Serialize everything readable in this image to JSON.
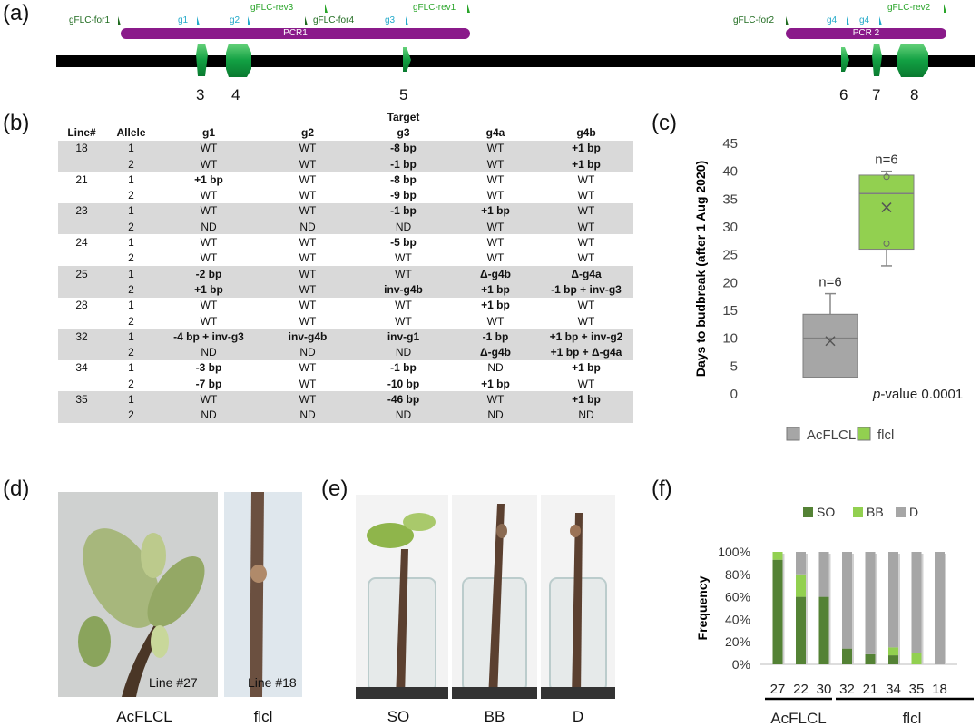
{
  "panels": {
    "a": "(a)",
    "b": "(b)",
    "c": "(c)",
    "d": "(d)",
    "e": "(e)",
    "f": "(f)"
  },
  "diagram": {
    "primers": [
      "gFLC-for1",
      "g1",
      "g2",
      "gFLC-rev3",
      "gFLC-for4",
      "g3",
      "gFLC-rev1",
      "gFLC-for2",
      "g4",
      "g4",
      "gFLC-rev2"
    ],
    "pcr": [
      "PCR1",
      "PCR 2"
    ],
    "exons": [
      "3",
      "4",
      "5",
      "6",
      "7",
      "8"
    ],
    "colors": {
      "pcr": "#8a1a8a",
      "exon": "#1aa34a",
      "chromosome": "#000000"
    }
  },
  "table": {
    "target_label": "Target",
    "headers": [
      "Line#",
      "Allele",
      "g1",
      "g2",
      "g3",
      "g4a",
      "g4b"
    ],
    "rows": [
      [
        "18",
        "1",
        "WT",
        "WT",
        "-8 bp",
        "WT",
        "+1 bp"
      ],
      [
        "",
        "2",
        "WT",
        "WT",
        "-1 bp",
        "WT",
        "+1 bp"
      ],
      [
        "21",
        "1",
        "+1 bp",
        "WT",
        "-8 bp",
        "WT",
        "WT"
      ],
      [
        "",
        "2",
        "WT",
        "WT",
        "-9 bp",
        "WT",
        "WT"
      ],
      [
        "23",
        "1",
        "WT",
        "WT",
        "-1 bp",
        "+1 bp",
        "WT"
      ],
      [
        "",
        "2",
        "ND",
        "ND",
        "ND",
        "WT",
        "WT"
      ],
      [
        "24",
        "1",
        "WT",
        "WT",
        "-5 bp",
        "WT",
        "WT"
      ],
      [
        "",
        "2",
        "WT",
        "WT",
        "WT",
        "WT",
        "WT"
      ],
      [
        "25",
        "1",
        "-2 bp",
        "WT",
        "WT",
        "Δ-g4b",
        "Δ-g4a"
      ],
      [
        "",
        "2",
        "+1 bp",
        "WT",
        "inv-g4b",
        "+1 bp",
        "-1 bp + inv-g3"
      ],
      [
        "28",
        "1",
        "WT",
        "WT",
        "WT",
        "+1 bp",
        "WT"
      ],
      [
        "",
        "2",
        "WT",
        "WT",
        "WT",
        "WT",
        "WT"
      ],
      [
        "32",
        "1",
        "-4 bp + inv-g3",
        "inv-g4b",
        "inv-g1",
        "-1 bp",
        "+1 bp + inv-g2"
      ],
      [
        "",
        "2",
        "ND",
        "ND",
        "ND",
        "Δ-g4b",
        "+1 bp + Δ-g4a"
      ],
      [
        "34",
        "1",
        "-3 bp",
        "WT",
        "-1 bp",
        "ND",
        "+1 bp"
      ],
      [
        "",
        "2",
        "-7 bp",
        "WT",
        "-10 bp",
        "+1 bp",
        "WT"
      ],
      [
        "35",
        "1",
        "WT",
        "WT",
        "-46 bp",
        "WT",
        "+1 bp"
      ],
      [
        "",
        "2",
        "ND",
        "ND",
        "ND",
        "ND",
        "ND"
      ]
    ]
  },
  "chart_data": [
    {
      "type": "boxplot",
      "ylabel": "Days to budbreak (after 1 Aug 2020)",
      "ylim": [
        0,
        45
      ],
      "yticks": [
        "0",
        "5",
        "10",
        "15",
        "20",
        "25",
        "30",
        "35",
        "40",
        "45"
      ],
      "series": [
        {
          "name": "AcFLCL",
          "color": "#a6a6a6",
          "min": 3,
          "q1": 3,
          "median": 10,
          "q3": 14.3,
          "max": 18,
          "mean": 9.5,
          "n_label": "n=6"
        },
        {
          "name": "flcl",
          "color": "#92d050",
          "min": 23,
          "q1": 26,
          "median": 36,
          "q3": 39.3,
          "max": 40,
          "mean": 33.5,
          "n_label": "n=6",
          "points": [
            39,
            27
          ]
        }
      ],
      "annotation_italic": "p",
      "annotation": "-value 0.0001"
    },
    {
      "type": "bar",
      "stacked": true,
      "ylabel": "Frequency",
      "yticks": [
        "0%",
        "20%",
        "40%",
        "60%",
        "80%",
        "100%"
      ],
      "categories": [
        "27",
        "22",
        "30",
        "32",
        "21",
        "34",
        "35",
        "18"
      ],
      "series": [
        {
          "name": "SO",
          "color": "#548235",
          "values": [
            93,
            60,
            60,
            14,
            9,
            8,
            0,
            0
          ]
        },
        {
          "name": "BB",
          "color": "#92d050",
          "values": [
            7,
            20,
            0,
            0,
            0,
            7,
            10,
            0
          ]
        },
        {
          "name": "D",
          "color": "#a6a6a6",
          "values": [
            0,
            20,
            40,
            86,
            91,
            85,
            90,
            100
          ]
        }
      ],
      "groups": [
        "AcFLCL",
        "flcl"
      ]
    }
  ],
  "photos": {
    "d_captions": [
      "AcFLCL",
      "flcl"
    ],
    "d_lines": [
      "Line #27",
      "Line #18"
    ],
    "e_captions": [
      "SO",
      "BB",
      "D"
    ]
  }
}
